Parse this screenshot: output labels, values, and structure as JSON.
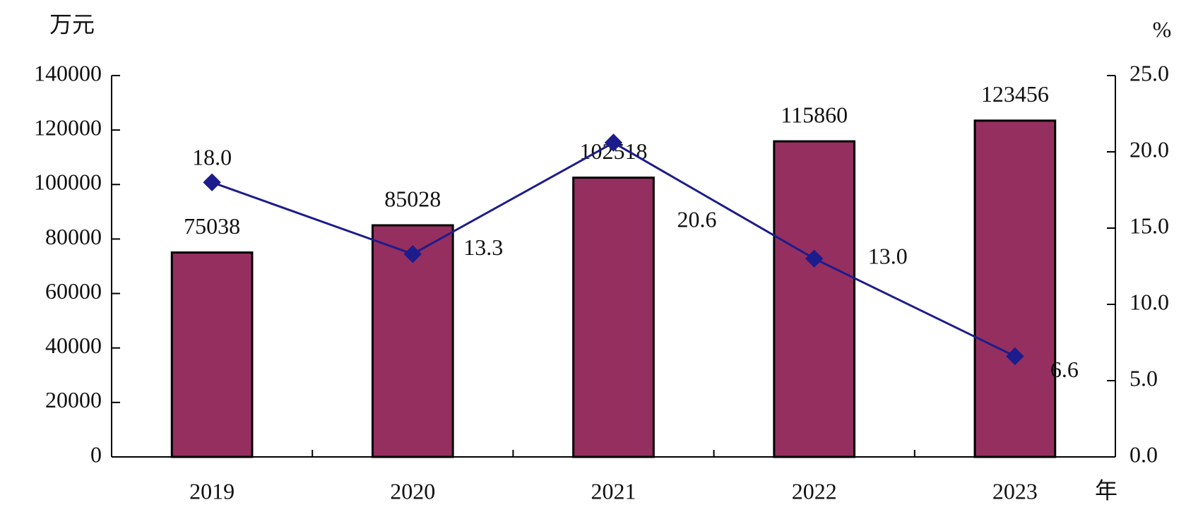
{
  "chart_data": {
    "type": "bar",
    "categories": [
      "2019",
      "2020",
      "2021",
      "2022",
      "2023"
    ],
    "y_label": "万元",
    "y2_label": "%",
    "x_label": "年",
    "series": [
      {
        "type": "bar",
        "color": "#952f5f",
        "values": [
          75038,
          85028,
          102518,
          115860,
          123456
        ]
      },
      {
        "type": "line",
        "axis": "y2",
        "color": "#1c1c8c",
        "values": [
          18.0,
          13.3,
          20.6,
          13.0,
          6.6
        ],
        "value_labels": [
          "18.0",
          "13.3",
          "20.6",
          "13.0",
          "6.6"
        ]
      }
    ],
    "ylim": [
      0,
      140000
    ],
    "yticks": [
      0,
      20000,
      40000,
      60000,
      80000,
      100000,
      120000,
      140000
    ],
    "y2lim": [
      0,
      25
    ],
    "y2ticks": [
      {
        "value": 0,
        "label": "0.0"
      },
      {
        "value": 5,
        "label": "5.0"
      },
      {
        "value": 10,
        "label": "10.0"
      },
      {
        "value": 15,
        "label": "15.0"
      },
      {
        "value": 20,
        "label": "20.0"
      },
      {
        "value": 25,
        "label": "25.0"
      }
    ]
  }
}
